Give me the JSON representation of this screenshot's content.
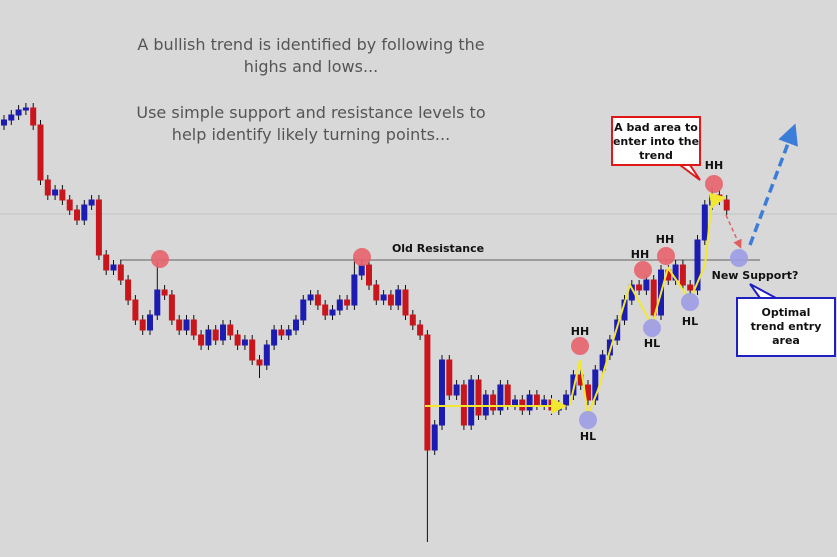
{
  "chart_data": {
    "type": "candlestick",
    "intro": [
      [
        "A bullish trend is identified by following the",
        "highs and lows..."
      ],
      [
        "Use simple support and resistance levels to",
        "help identify likely turning points..."
      ]
    ],
    "open": [
      475,
      480,
      485,
      490,
      492,
      475,
      420,
      405,
      410,
      400,
      390,
      380,
      395,
      400,
      345,
      330,
      335,
      320,
      300,
      280,
      270,
      285,
      310,
      305,
      280,
      270,
      280,
      265,
      255,
      270,
      260,
      275,
      265,
      255,
      260,
      240,
      235,
      255,
      270,
      265,
      270,
      280,
      300,
      305,
      295,
      285,
      290,
      300,
      295,
      325,
      335,
      315,
      300,
      305,
      295,
      310,
      285,
      275,
      265,
      150,
      175,
      240,
      205,
      215,
      175,
      220,
      185,
      205,
      190,
      215,
      195,
      200,
      190,
      205,
      195,
      200,
      190,
      195,
      205,
      225,
      215,
      200,
      230,
      245,
      260,
      280,
      300,
      315,
      310,
      320,
      285,
      330,
      320,
      335,
      315,
      310,
      360,
      395,
      405,
      400
    ],
    "high": [
      485,
      490,
      495,
      497,
      497,
      480,
      425,
      415,
      415,
      405,
      395,
      400,
      405,
      405,
      350,
      340,
      340,
      325,
      305,
      285,
      290,
      338,
      315,
      310,
      285,
      285,
      285,
      270,
      275,
      275,
      280,
      280,
      270,
      265,
      265,
      245,
      260,
      275,
      275,
      275,
      285,
      305,
      310,
      310,
      300,
      295,
      305,
      305,
      342,
      340,
      340,
      320,
      310,
      310,
      315,
      315,
      290,
      280,
      270,
      180,
      245,
      245,
      220,
      220,
      225,
      225,
      210,
      210,
      220,
      220,
      205,
      205,
      210,
      210,
      205,
      205,
      200,
      210,
      230,
      230,
      220,
      235,
      250,
      265,
      285,
      305,
      320,
      320,
      325,
      325,
      335,
      335,
      340,
      340,
      320,
      365,
      400,
      412,
      410,
      405
    ],
    "low": [
      470,
      475,
      480,
      485,
      470,
      415,
      400,
      400,
      395,
      385,
      375,
      375,
      390,
      340,
      325,
      325,
      315,
      295,
      275,
      265,
      265,
      280,
      300,
      275,
      265,
      265,
      260,
      250,
      250,
      255,
      255,
      260,
      250,
      250,
      235,
      222,
      230,
      250,
      260,
      260,
      265,
      275,
      295,
      290,
      280,
      280,
      285,
      290,
      290,
      320,
      310,
      295,
      295,
      290,
      290,
      280,
      270,
      260,
      58,
      145,
      170,
      200,
      200,
      170,
      170,
      180,
      180,
      185,
      185,
      190,
      190,
      185,
      185,
      190,
      190,
      185,
      185,
      190,
      200,
      210,
      195,
      195,
      225,
      240,
      255,
      275,
      295,
      305,
      305,
      280,
      280,
      315,
      315,
      310,
      305,
      305,
      355,
      390,
      395,
      385
    ],
    "close": [
      480,
      485,
      490,
      492,
      475,
      420,
      405,
      410,
      400,
      390,
      380,
      395,
      400,
      345,
      330,
      335,
      320,
      300,
      280,
      270,
      285,
      310,
      305,
      280,
      270,
      280,
      265,
      255,
      270,
      260,
      275,
      265,
      255,
      260,
      240,
      235,
      255,
      270,
      265,
      270,
      280,
      300,
      305,
      295,
      285,
      290,
      300,
      295,
      325,
      335,
      315,
      300,
      305,
      295,
      310,
      285,
      275,
      265,
      150,
      175,
      240,
      205,
      215,
      175,
      220,
      185,
      205,
      190,
      215,
      195,
      200,
      190,
      205,
      195,
      200,
      190,
      195,
      205,
      225,
      215,
      200,
      230,
      245,
      260,
      280,
      300,
      315,
      310,
      320,
      285,
      330,
      320,
      335,
      315,
      310,
      360,
      395,
      405,
      400,
      390
    ],
    "up_color": "#1c1cb0",
    "down_color": "#c8161d",
    "ylim": [
      43,
      600
    ],
    "reference_label": "Old Resistance",
    "hh_labels": [
      "HH",
      "HH",
      "HH",
      "HH"
    ],
    "hl_labels": [
      "HL",
      "HL",
      "HL"
    ],
    "new_support": "New Support?",
    "bad_area": [
      "A bad area to",
      "enter into the",
      "trend"
    ],
    "optimal_entry": [
      "Optimal",
      "trend entry",
      "area"
    ]
  }
}
